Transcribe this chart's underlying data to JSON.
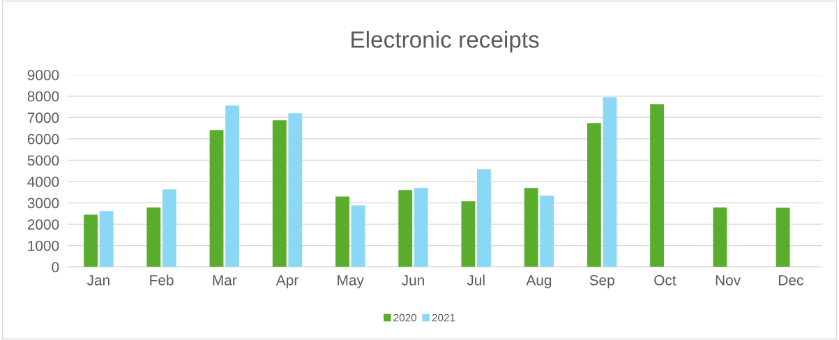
{
  "chart_data": {
    "type": "bar",
    "title": "Electronic receipts",
    "categories": [
      "Jan",
      "Feb",
      "Mar",
      "Apr",
      "May",
      "Jun",
      "Jul",
      "Aug",
      "Sep",
      "Oct",
      "Nov",
      "Dec"
    ],
    "series": [
      {
        "name": "2020",
        "color": "#5aac2c",
        "values": [
          2450,
          2780,
          6410,
          6870,
          3300,
          3600,
          3080,
          3700,
          6740,
          7620,
          2780,
          2770
        ]
      },
      {
        "name": "2021",
        "color": "#8ad8f6",
        "values": [
          2620,
          3630,
          7560,
          7200,
          2880,
          3700,
          4580,
          3340,
          7950,
          null,
          null,
          null
        ]
      }
    ],
    "ylim": [
      0,
      9000
    ],
    "yticks": [
      0,
      1000,
      2000,
      3000,
      4000,
      5000,
      6000,
      7000,
      8000,
      9000
    ],
    "grid": "y",
    "legend": "bottom"
  }
}
